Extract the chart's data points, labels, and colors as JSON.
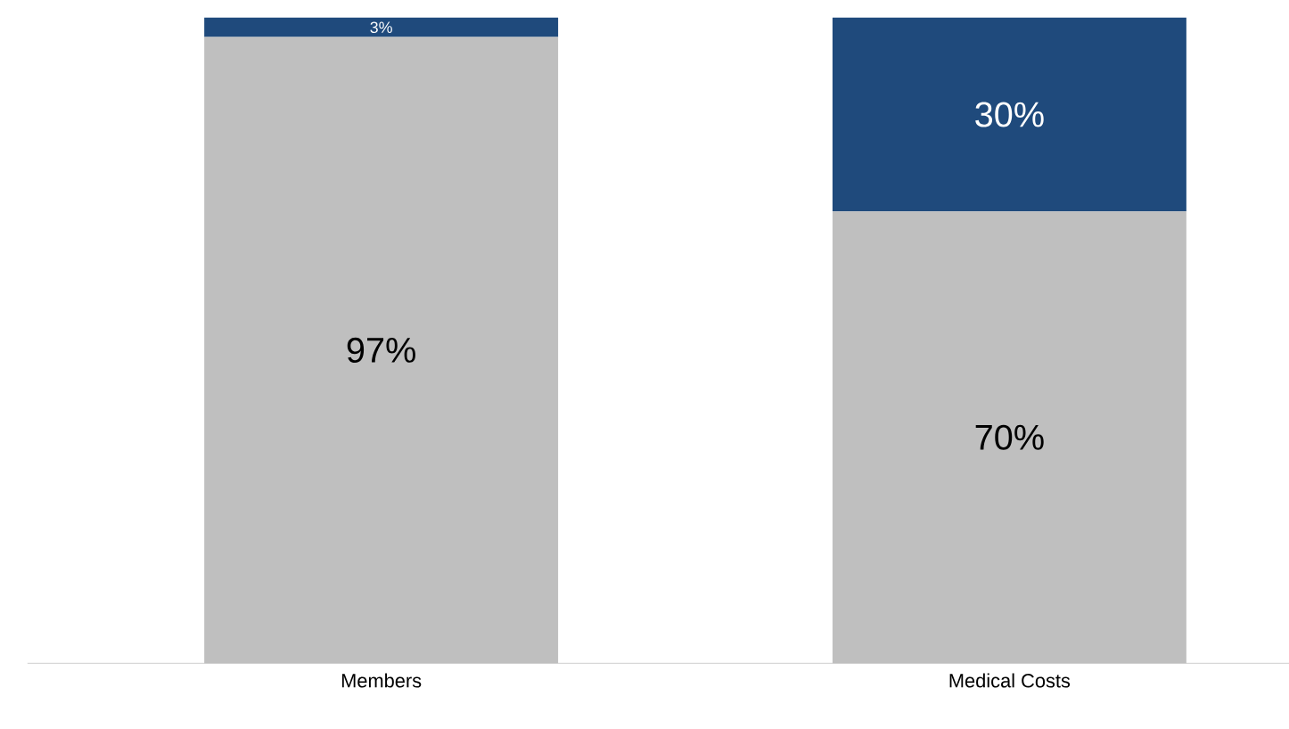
{
  "chart_data": {
    "type": "bar",
    "stacked": true,
    "categories": [
      "Members",
      "Medical Costs"
    ],
    "series": [
      {
        "color": "#bfbfbf",
        "values": [
          97,
          70
        ],
        "value_labels": [
          "97%",
          "70%"
        ]
      },
      {
        "color": "#1f4a7c",
        "values": [
          3,
          30
        ],
        "value_labels": [
          "3%",
          "30%"
        ]
      }
    ],
    "tick_labels": "x"
  }
}
